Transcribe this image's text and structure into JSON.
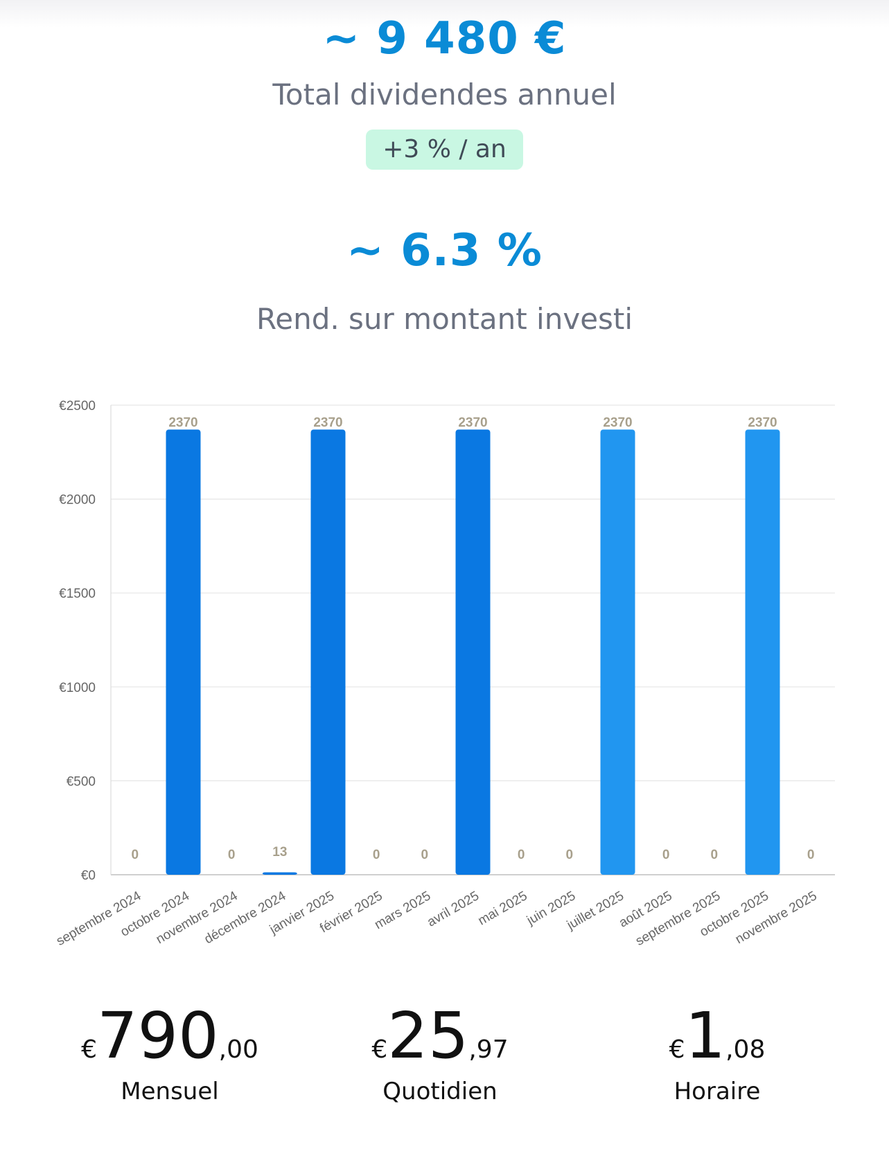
{
  "summary": {
    "annual_total": "~ 9 480 €",
    "annual_total_label": "Total dividendes annuel",
    "growth_badge": "+3 % / an",
    "yield": "~ 6.3 %",
    "yield_label": "Rend. sur montant investi"
  },
  "stats": [
    {
      "currency": "€",
      "integer": "790",
      "decimal": ",00",
      "label": "Mensuel"
    },
    {
      "currency": "€",
      "integer": "25",
      "decimal": ",97",
      "label": "Quotidien"
    },
    {
      "currency": "€",
      "integer": "1",
      "decimal": ",08",
      "label": "Horaire"
    }
  ],
  "chart_data": {
    "type": "bar",
    "title": "",
    "xlabel": "",
    "ylabel": "",
    "ylim": [
      0,
      2500
    ],
    "yticks": [
      0,
      500,
      1000,
      1500,
      2000,
      2500
    ],
    "ytick_labels": [
      "€0",
      "€500",
      "€1000",
      "€1500",
      "€2000",
      "€2500"
    ],
    "grid": true,
    "categories": [
      "septembre 2024",
      "octobre 2024",
      "novembre 2024",
      "décembre 2024",
      "janvier 2025",
      "février 2025",
      "mars 2025",
      "avril 2025",
      "mai 2025",
      "juin 2025",
      "juillet 2025",
      "août 2025",
      "septembre 2025",
      "octobre 2025",
      "novembre 2025"
    ],
    "values": [
      0,
      2370,
      0,
      13,
      2370,
      0,
      0,
      2370,
      0,
      0,
      2370,
      0,
      0,
      2370,
      0
    ],
    "data_labels": [
      "0",
      "2370",
      "0",
      "13",
      "2370",
      "0",
      "0",
      "2370",
      "0",
      "0",
      "2370",
      "0",
      "0",
      "2370",
      "0"
    ],
    "colors": {
      "past": "#0a78e2",
      "future": "#2196f0",
      "grid": "#e6e6e6",
      "axis_text": "#666666",
      "data_label": "#a8a08c"
    },
    "future_from_index": 10
  }
}
